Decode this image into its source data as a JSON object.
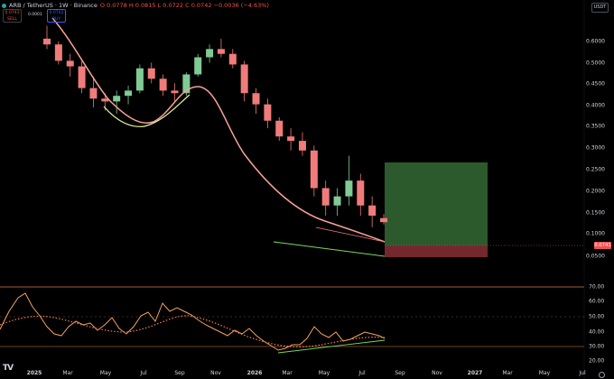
{
  "header": {
    "symbol": "ARB / TetherUS · 1W · Binance",
    "ohlc": "O 0.0778 H 0.0815 L 0.0722 C 0.0742 −0.0036 (−4.63%)",
    "sell_price": "0.0741",
    "sell_label": "SELL",
    "spread": "0.0001",
    "buy_price": "0.0742",
    "buy_label": "BUY",
    "currency": "USDT"
  },
  "price_axis": [
    "0.6000",
    "0.5000",
    "0.4500",
    "0.4000",
    "0.3500",
    "0.3000",
    "0.2500",
    "0.2000",
    "0.1500",
    "0.1000",
    "0.0500"
  ],
  "last_price_tag": "0.0741",
  "rsi_axis": [
    "70.00",
    "60.00",
    "50.00",
    "40.00",
    "30.00",
    "20.00"
  ],
  "time_axis": [
    {
      "label": "2025",
      "bold": true
    },
    {
      "label": "Mar",
      "bold": false
    },
    {
      "label": "May",
      "bold": false
    },
    {
      "label": "Jul",
      "bold": false
    },
    {
      "label": "Sep",
      "bold": false
    },
    {
      "label": "Nov",
      "bold": false
    },
    {
      "label": "2026",
      "bold": true
    },
    {
      "label": "Mar",
      "bold": false
    },
    {
      "label": "May",
      "bold": false
    },
    {
      "label": "Jul",
      "bold": false
    },
    {
      "label": "Sep",
      "bold": false
    },
    {
      "label": "Nov",
      "bold": false
    },
    {
      "label": "2027",
      "bold": true
    },
    {
      "label": "Mar",
      "bold": false
    },
    {
      "label": "May",
      "bold": false
    },
    {
      "label": "Jul",
      "bold": false
    }
  ],
  "colors": {
    "up": "#26a69a",
    "down": "#ef5350",
    "up_candle": "#81c995",
    "down_candle": "#f07b7b",
    "ma_fast": "#f9a19a",
    "ma_support": "#e8f5a0",
    "trendline": "#7ed957",
    "rsi_line": "#f5a25d",
    "rsi_signal": "#f57c5c",
    "target_box": "#2f5f2f",
    "stop_box": "#7a2a2f"
  },
  "chart_data": {
    "type": "candlestick",
    "interval": "1W",
    "y_scale": "log",
    "y_ticks": [
      0.6,
      0.5,
      0.45,
      0.4,
      0.35,
      0.3,
      0.25,
      0.2,
      0.15,
      0.1,
      0.05
    ],
    "x_ticks": [
      "2025",
      "Mar",
      "May",
      "Jul",
      "Sep",
      "Nov",
      "2026",
      "Mar",
      "May",
      "Jul",
      "Sep",
      "Nov",
      "2027",
      "Mar",
      "May",
      "Jul"
    ],
    "series": [
      {
        "name": "ARB/USDT",
        "values": [
          {
            "t": "2025-01",
            "o": 0.62,
            "h": 0.72,
            "l": 0.55,
            "c": 0.58
          },
          {
            "t": "2025-01",
            "o": 0.58,
            "h": 0.6,
            "l": 0.46,
            "c": 0.48
          },
          {
            "t": "2025-02",
            "o": 0.48,
            "h": 0.52,
            "l": 0.4,
            "c": 0.45
          },
          {
            "t": "2025-02",
            "o": 0.45,
            "h": 0.48,
            "l": 0.33,
            "c": 0.35
          },
          {
            "t": "2025-03",
            "o": 0.35,
            "h": 0.4,
            "l": 0.28,
            "c": 0.31
          },
          {
            "t": "2025-03",
            "o": 0.31,
            "h": 0.33,
            "l": 0.27,
            "c": 0.3
          },
          {
            "t": "2025-04",
            "o": 0.3,
            "h": 0.34,
            "l": 0.26,
            "c": 0.32
          },
          {
            "t": "2025-04",
            "o": 0.32,
            "h": 0.36,
            "l": 0.29,
            "c": 0.34
          },
          {
            "t": "2025-05",
            "o": 0.34,
            "h": 0.46,
            "l": 0.33,
            "c": 0.44
          },
          {
            "t": "2025-05",
            "o": 0.44,
            "h": 0.47,
            "l": 0.37,
            "c": 0.39
          },
          {
            "t": "2025-06",
            "o": 0.39,
            "h": 0.41,
            "l": 0.32,
            "c": 0.34
          },
          {
            "t": "2025-06",
            "o": 0.34,
            "h": 0.37,
            "l": 0.3,
            "c": 0.33
          },
          {
            "t": "2025-07",
            "o": 0.33,
            "h": 0.42,
            "l": 0.32,
            "c": 0.41
          },
          {
            "t": "2025-07",
            "o": 0.41,
            "h": 0.52,
            "l": 0.4,
            "c": 0.5
          },
          {
            "t": "2025-08",
            "o": 0.5,
            "h": 0.58,
            "l": 0.47,
            "c": 0.55
          },
          {
            "t": "2025-08",
            "o": 0.55,
            "h": 0.62,
            "l": 0.5,
            "c": 0.52
          },
          {
            "t": "2025-09",
            "o": 0.52,
            "h": 0.55,
            "l": 0.44,
            "c": 0.46
          },
          {
            "t": "2025-10",
            "o": 0.46,
            "h": 0.48,
            "l": 0.3,
            "c": 0.33
          },
          {
            "t": "2025-10",
            "o": 0.33,
            "h": 0.35,
            "l": 0.26,
            "c": 0.29
          },
          {
            "t": "2025-11",
            "o": 0.29,
            "h": 0.31,
            "l": 0.22,
            "c": 0.24
          },
          {
            "t": "2025-12",
            "o": 0.24,
            "h": 0.25,
            "l": 0.19,
            "c": 0.2
          },
          {
            "t": "2025-12",
            "o": 0.2,
            "h": 0.22,
            "l": 0.17,
            "c": 0.19
          },
          {
            "t": "2026-01",
            "o": 0.19,
            "h": 0.21,
            "l": 0.16,
            "c": 0.17
          },
          {
            "t": "2026-02",
            "o": 0.17,
            "h": 0.18,
            "l": 0.1,
            "c": 0.11
          },
          {
            "t": "2026-03",
            "o": 0.11,
            "h": 0.12,
            "l": 0.08,
            "c": 0.09
          },
          {
            "t": "2026-04",
            "o": 0.09,
            "h": 0.11,
            "l": 0.08,
            "c": 0.1
          },
          {
            "t": "2026-05",
            "o": 0.1,
            "h": 0.16,
            "l": 0.09,
            "c": 0.12
          },
          {
            "t": "2026-06",
            "o": 0.12,
            "h": 0.13,
            "l": 0.08,
            "c": 0.09
          },
          {
            "t": "2026-07",
            "o": 0.09,
            "h": 0.1,
            "l": 0.07,
            "c": 0.08
          },
          {
            "t": "2026-08",
            "o": 0.0778,
            "h": 0.0815,
            "l": 0.0722,
            "c": 0.0742
          }
        ]
      }
    ],
    "position": {
      "entry": 0.0742,
      "target": 0.27,
      "stop": 0.055
    },
    "rsi": {
      "ylim": [
        20,
        70
      ],
      "levels": [
        70,
        50,
        30
      ],
      "last": 34
    }
  }
}
